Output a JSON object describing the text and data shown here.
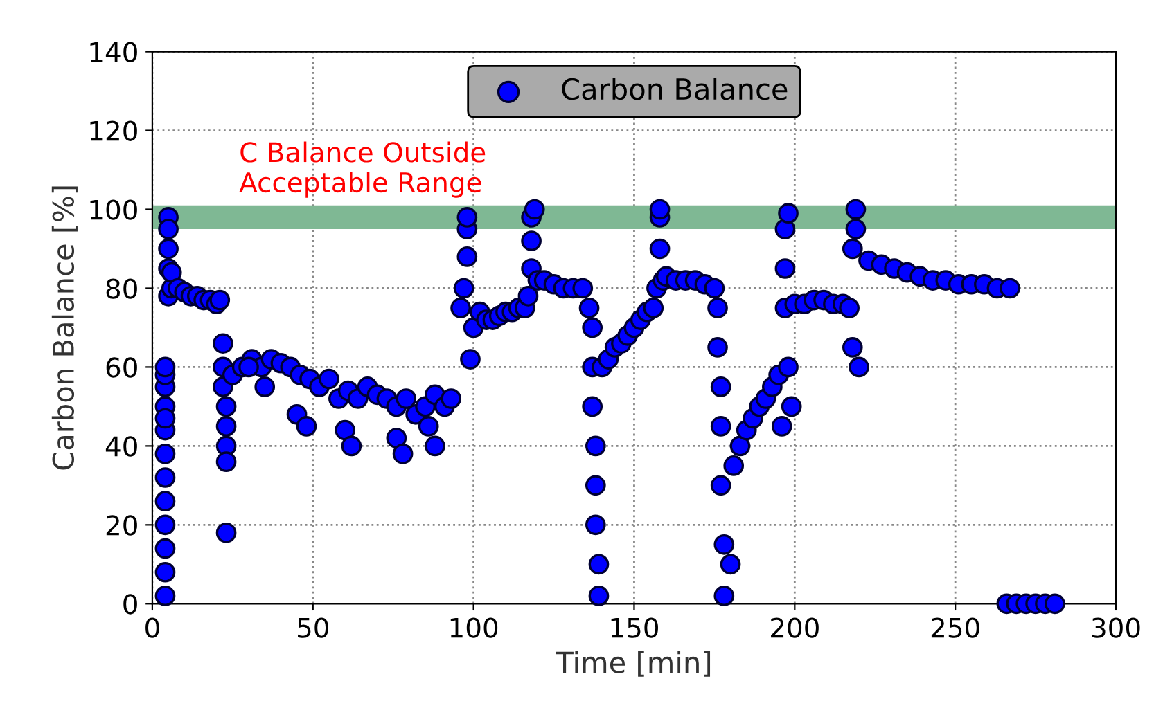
{
  "chart_data": {
    "type": "scatter",
    "xlabel": "Time [min]",
    "ylabel": "Carbon Balance [%]",
    "xlim": [
      0,
      300
    ],
    "ylim": [
      0,
      140
    ],
    "xticks": [
      0,
      50,
      100,
      150,
      200,
      250,
      300
    ],
    "yticks": [
      0,
      20,
      40,
      60,
      80,
      100,
      120,
      140
    ],
    "grid": true,
    "legend": "top",
    "marker": "circle",
    "bands": [
      {
        "axis": "y",
        "from": 95,
        "to": 101,
        "label": "C Balance Outside\nAcceptable Range",
        "color": "#7fb894"
      }
    ],
    "series": [
      {
        "name": "Carbon Balance",
        "color": "#0000ff",
        "x": [
          4,
          4,
          4,
          4,
          4,
          4,
          4,
          4,
          4,
          4,
          4,
          4,
          4,
          5,
          5,
          5,
          5,
          5,
          6,
          6,
          8,
          10,
          12,
          14,
          16,
          18,
          20,
          21,
          22,
          22,
          22,
          23,
          23,
          23,
          23,
          23,
          25,
          28,
          31,
          34,
          37,
          40,
          43,
          46,
          49,
          52,
          55,
          58,
          61,
          64,
          67,
          70,
          73,
          76,
          79,
          82,
          85,
          88,
          91,
          93,
          60,
          62,
          76,
          78,
          86,
          88,
          45,
          48,
          35,
          30,
          96,
          97,
          98,
          98,
          98,
          99,
          100,
          102,
          104,
          106,
          108,
          110,
          112,
          114,
          116,
          117,
          118,
          118,
          118,
          119,
          120,
          122,
          125,
          128,
          131,
          134,
          136,
          137,
          137,
          137,
          138,
          138,
          138,
          139,
          139,
          140,
          142,
          144,
          146,
          148,
          150,
          152,
          154,
          156,
          157,
          158,
          158,
          158,
          159,
          160,
          163,
          166,
          169,
          172,
          175,
          176,
          176,
          177,
          177,
          177,
          178,
          178,
          180,
          181,
          183,
          185,
          187,
          189,
          191,
          193,
          195,
          196,
          197,
          197,
          197,
          198,
          198,
          199,
          200,
          203,
          206,
          209,
          212,
          215,
          217,
          218,
          218,
          219,
          219,
          220,
          223,
          227,
          231,
          235,
          239,
          243,
          247,
          251,
          255,
          259,
          263,
          267,
          266,
          269,
          272,
          275,
          278,
          281
        ],
        "values": [
          2,
          8,
          14,
          20,
          26,
          32,
          38,
          44,
          50,
          55,
          58,
          60,
          47,
          98,
          95,
          90,
          85,
          78,
          80,
          84,
          80,
          79,
          78,
          78,
          77,
          77,
          76,
          77,
          66,
          60,
          55,
          50,
          45,
          40,
          36,
          18,
          58,
          60,
          62,
          60,
          62,
          61,
          60,
          58,
          57,
          55,
          57,
          52,
          54,
          52,
          55,
          53,
          52,
          50,
          52,
          48,
          50,
          53,
          50,
          52,
          44,
          40,
          42,
          38,
          45,
          40,
          48,
          45,
          55,
          60,
          75,
          80,
          88,
          95,
          98,
          62,
          70,
          74,
          72,
          72,
          73,
          74,
          74,
          75,
          75,
          78,
          85,
          92,
          98,
          100,
          82,
          82,
          81,
          80,
          80,
          80,
          75,
          70,
          60,
          50,
          40,
          30,
          20,
          10,
          2,
          60,
          62,
          65,
          66,
          68,
          70,
          72,
          74,
          75,
          80,
          90,
          98,
          100,
          82,
          83,
          82,
          82,
          82,
          81,
          80,
          75,
          65,
          55,
          45,
          30,
          15,
          2,
          10,
          35,
          40,
          44,
          47,
          50,
          52,
          55,
          58,
          45,
          75,
          85,
          95,
          99,
          60,
          50,
          76,
          76,
          77,
          77,
          76,
          76,
          75,
          65,
          90,
          100,
          95,
          60,
          87,
          86,
          85,
          84,
          83,
          82,
          82,
          81,
          81,
          81,
          80,
          80,
          0,
          0,
          0,
          0,
          0,
          0
        ]
      }
    ]
  }
}
